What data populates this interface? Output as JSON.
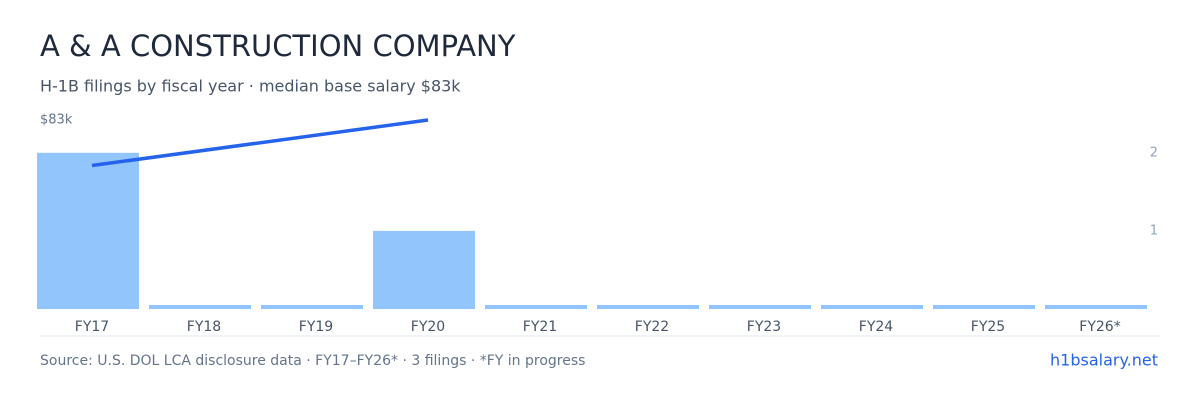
{
  "chart_data": {
    "type": "bar",
    "title": "A & A CONSTRUCTION COMPANY",
    "subtitle": "H-1B filings by fiscal year · median base salary $83k",
    "categories": [
      "FY17",
      "FY18",
      "FY19",
      "FY20",
      "FY21",
      "FY22",
      "FY23",
      "FY24",
      "FY25",
      "FY26*"
    ],
    "values": [
      2,
      0,
      0,
      1,
      0,
      0,
      0,
      0,
      0,
      0
    ],
    "color": "#93c5fd",
    "y2lim": [
      0,
      2.42
    ],
    "y2ticks": [
      1,
      2
    ],
    "line": {
      "x": [
        "FY17",
        "FY20"
      ],
      "values": [
        63000,
        83000
      ],
      "color": "#2563eb"
    },
    "ylim": [
      0,
      83000
    ],
    "yticks": [
      {
        "value": 83000,
        "label": "$83k"
      }
    ],
    "source": "Source: U.S. DOL LCA disclosure data · FY17–FY26* · 3 filings · *FY in progress",
    "link": "h1bsalary.net"
  }
}
